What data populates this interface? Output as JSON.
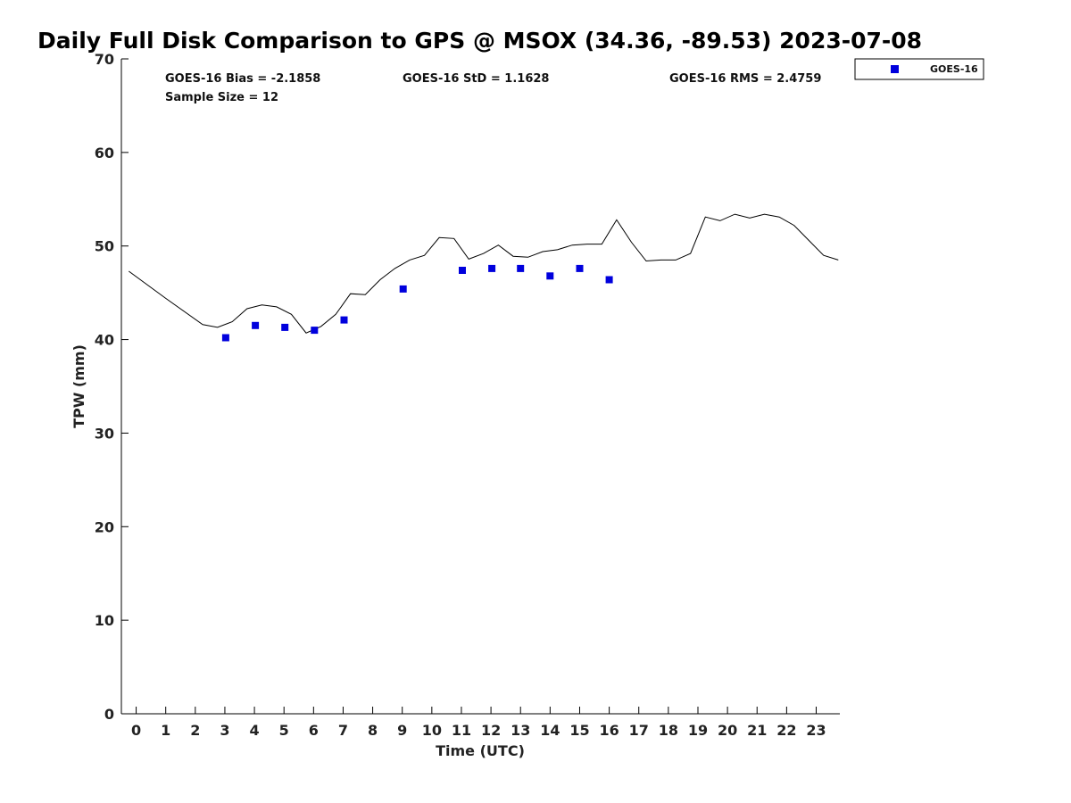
{
  "chart_data": {
    "type": "scatter",
    "title": "Daily Full Disk Comparison to GPS @ MSOX (34.36, -89.53) 2023-07-08",
    "xlabel": "Time (UTC)",
    "ylabel": "TPW (mm)",
    "xlim": [
      -0.5,
      23.8
    ],
    "ylim": [
      0,
      70
    ],
    "x_ticks": [
      "0",
      "1",
      "2",
      "3",
      "4",
      "5",
      "6",
      "7",
      "8",
      "9",
      "10",
      "11",
      "12",
      "13",
      "14",
      "15",
      "16",
      "17",
      "18",
      "19",
      "20",
      "21",
      "22",
      "23"
    ],
    "y_ticks": [
      "0",
      "10",
      "20",
      "30",
      "40",
      "50",
      "60",
      "70"
    ],
    "grid": false,
    "legend_position": "outside-top-right",
    "stats": [
      "GOES-16 Bias = -2.1858",
      "GOES-16 StD = 1.1628",
      "GOES-16 RMS = 2.4759",
      "Sample Size = 12"
    ],
    "series": [
      {
        "name": "GOES-16",
        "mode": "markers",
        "marker": "square",
        "color": "#0000dd",
        "x": [
          3.03,
          4.03,
          5.03,
          6.03,
          7.03,
          9.03,
          11.03,
          12.03,
          13.0,
          14.0,
          15.0,
          16.0
        ],
        "y": [
          40.2,
          41.5,
          41.3,
          41.0,
          42.1,
          45.4,
          47.4,
          47.6,
          47.6,
          46.8,
          47.6,
          46.4
        ]
      },
      {
        "mode": "line",
        "color": "#000000",
        "x": [
          -0.25,
          1.0,
          2.25,
          2.75,
          3.25,
          3.75,
          4.25,
          4.75,
          5.25,
          5.75,
          6.25,
          6.75,
          7.25,
          7.75,
          8.25,
          8.75,
          9.25,
          9.75,
          10.25,
          10.75,
          11.25,
          11.75,
          12.25,
          12.75,
          13.25,
          13.75,
          14.25,
          14.75,
          15.25,
          15.75,
          16.25,
          16.75,
          17.25,
          17.75,
          18.25,
          18.75,
          19.25,
          19.75,
          20.25,
          20.75,
          21.25,
          21.75,
          22.25,
          22.75,
          23.25,
          23.75
        ],
        "y": [
          47.3,
          44.4,
          41.6,
          41.3,
          41.9,
          43.3,
          43.7,
          43.5,
          42.7,
          40.7,
          41.4,
          42.7,
          44.9,
          44.8,
          46.4,
          47.6,
          48.5,
          49.0,
          50.9,
          50.8,
          48.6,
          49.2,
          50.1,
          48.9,
          48.8,
          49.4,
          49.6,
          50.1,
          50.2,
          50.2,
          52.8,
          50.4,
          48.4,
          48.5,
          48.5,
          49.2,
          53.1,
          52.7,
          53.4,
          53.0,
          53.4,
          53.1,
          52.2,
          50.6,
          49.0,
          48.5
        ]
      }
    ]
  }
}
